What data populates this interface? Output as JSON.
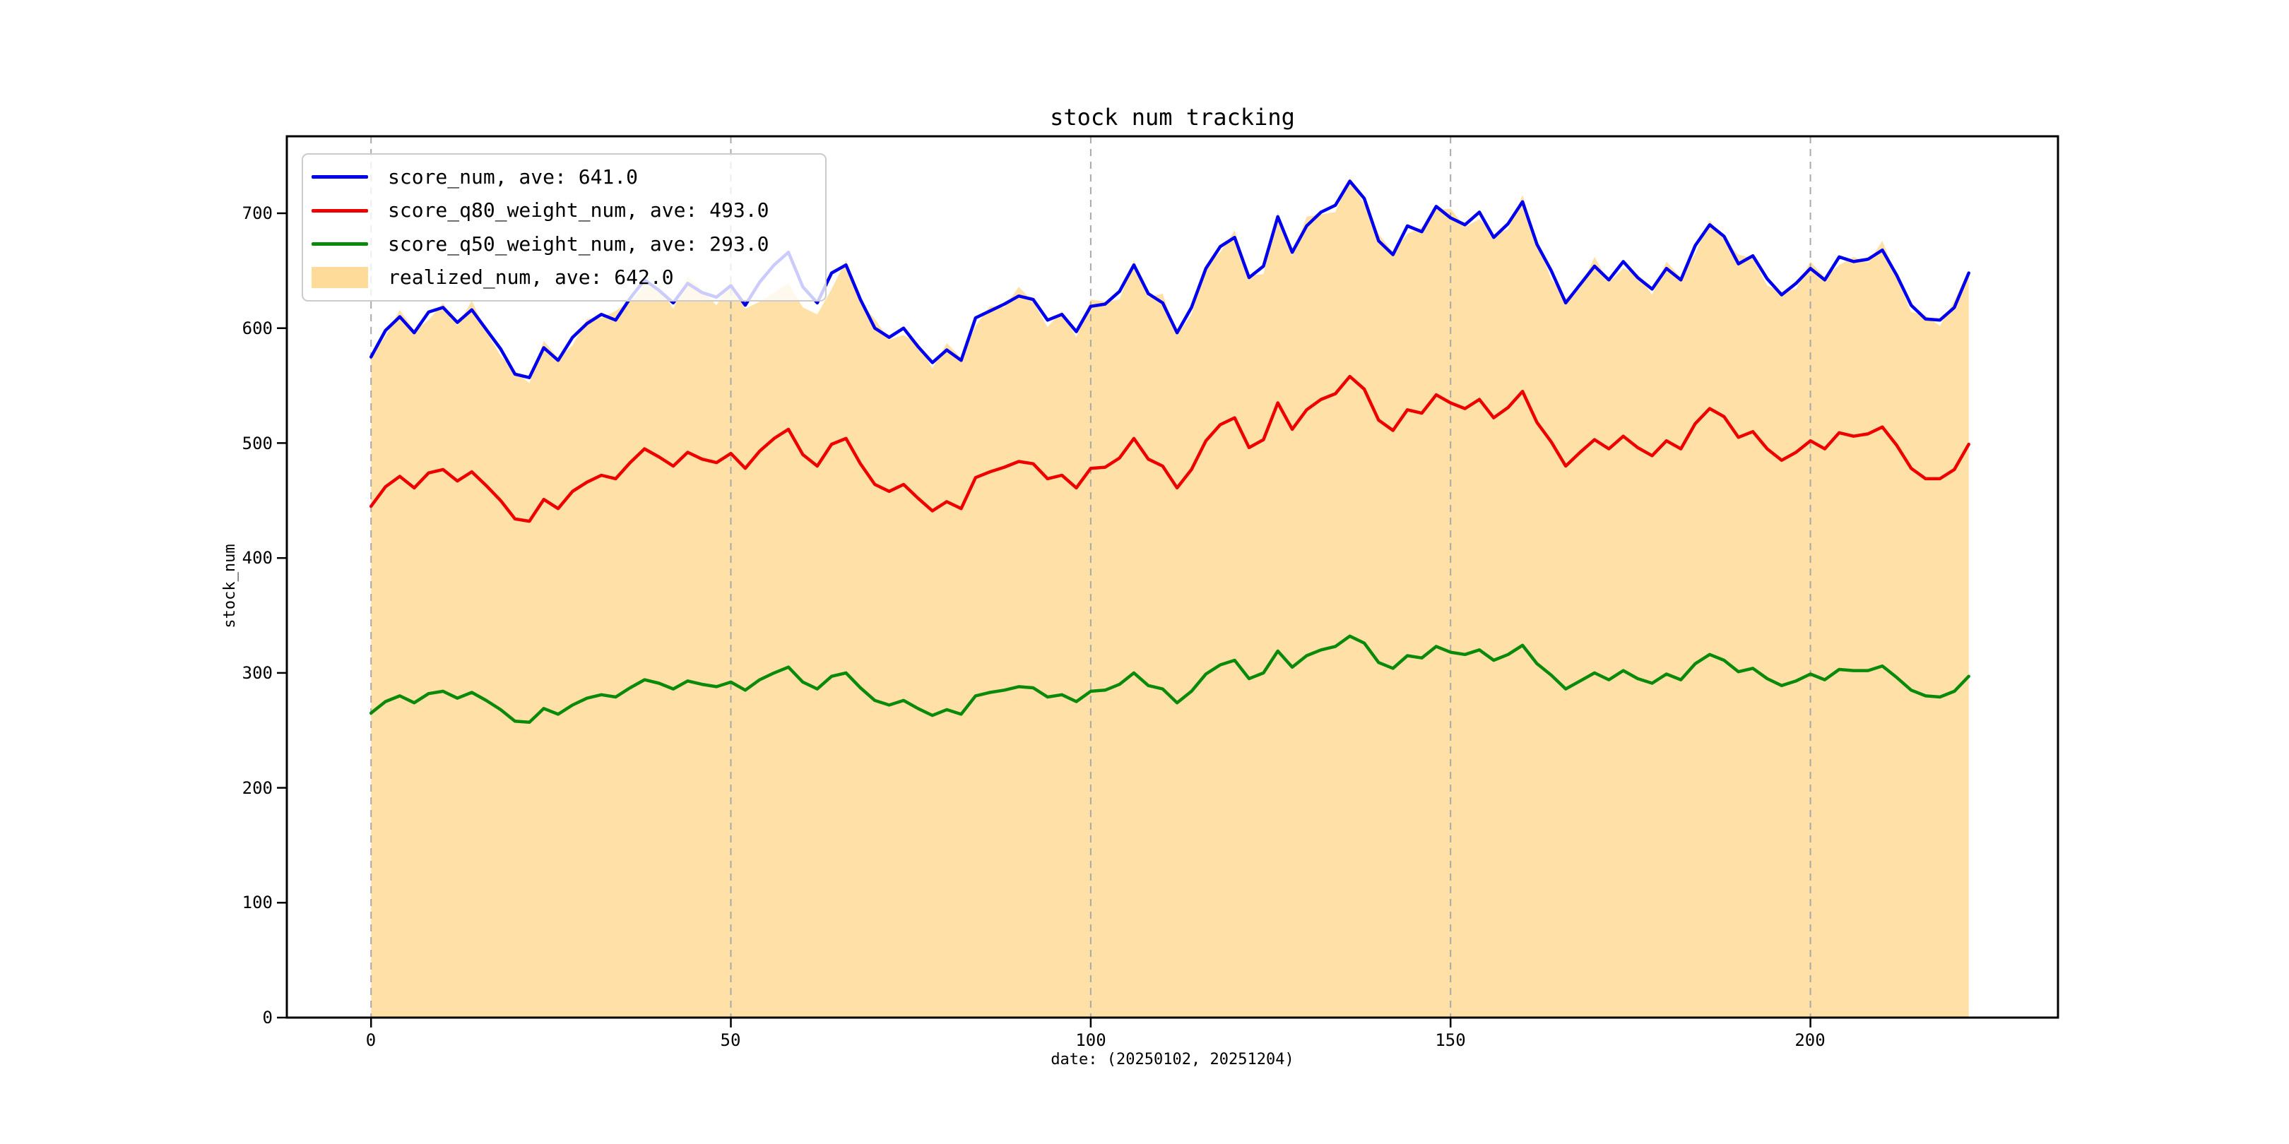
{
  "figure": {
    "title": "stock num tracking",
    "xlabel": "date: (20250102, 20251204)",
    "ylabel": "stock_num",
    "background": "#ffffff"
  },
  "chart_data": {
    "type": "line",
    "title": "stock num tracking",
    "xlabel": "date: (20250102, 20251204)",
    "ylabel": "stock_num",
    "date_range_start": "20250102",
    "date_range_end": "20251204",
    "xlim": [
      -11.7,
      234.4
    ],
    "ylim": [
      0,
      767
    ],
    "xticks": [
      0,
      50,
      100,
      150,
      200
    ],
    "yticks": [
      0,
      100,
      200,
      300,
      400,
      500,
      600,
      700
    ],
    "grid": "vertical-dashed",
    "legend_position": "upper-left",
    "x_start": 0,
    "x_step": 2,
    "colors": {
      "blue": "#0000ee",
      "red": "#ee0000",
      "green": "#0a8a0a",
      "fill_orange": "#ffa500",
      "grid": "#a9a9a9",
      "spine": "#000000",
      "legend_border": "#cbcbcb"
    },
    "series": [
      {
        "name": "score_num",
        "label": "score_num, ave: 641.0",
        "ave": 641.0,
        "color": "#0000ee",
        "kind": "line",
        "values": [
          575,
          598,
          610,
          596,
          614,
          618,
          605,
          616,
          599,
          582,
          560,
          557,
          583,
          572,
          592,
          604,
          612,
          607,
          626,
          642,
          633,
          622,
          639,
          631,
          627,
          637,
          620,
          640,
          655,
          666,
          636,
          622,
          648,
          655,
          625,
          600,
          592,
          600,
          584,
          570,
          581,
          572,
          609,
          615,
          621,
          628,
          625,
          607,
          612,
          597,
          619,
          621,
          632,
          655,
          630,
          622,
          596,
          618,
          652,
          671,
          679,
          644,
          654,
          697,
          666,
          689,
          701,
          707,
          728,
          713,
          676,
          664,
          689,
          684,
          706,
          696,
          690,
          701,
          679,
          691,
          710,
          673,
          650,
          622,
          638,
          654,
          642,
          658,
          644,
          634,
          652,
          642,
          672,
          690,
          680,
          656,
          663,
          643,
          629,
          639,
          652,
          642,
          662,
          658,
          660,
          668,
          646,
          620,
          608,
          607,
          618,
          648
        ]
      },
      {
        "name": "score_q80_weight_num",
        "label": "score_q80_weight_num, ave: 493.0",
        "ave": 493.0,
        "color": "#ee0000",
        "kind": "line",
        "values": [
          445,
          462,
          471,
          461,
          474,
          477,
          467,
          475,
          463,
          450,
          434,
          432,
          451,
          443,
          458,
          466,
          472,
          469,
          483,
          495,
          488,
          480,
          492,
          486,
          483,
          491,
          478,
          493,
          504,
          512,
          490,
          480,
          499,
          504,
          482,
          464,
          458,
          464,
          452,
          441,
          449,
          443,
          470,
          475,
          479,
          484,
          482,
          469,
          472,
          461,
          478,
          479,
          487,
          504,
          486,
          480,
          461,
          477,
          502,
          516,
          522,
          496,
          503,
          535,
          512,
          529,
          538,
          543,
          558,
          547,
          520,
          511,
          529,
          526,
          542,
          535,
          530,
          538,
          522,
          531,
          545,
          518,
          501,
          480,
          492,
          503,
          495,
          506,
          496,
          489,
          502,
          495,
          517,
          530,
          523,
          505,
          510,
          495,
          485,
          492,
          502,
          495,
          509,
          506,
          508,
          514,
          498,
          478,
          469,
          469,
          477,
          499
        ]
      },
      {
        "name": "score_q50_weight_num",
        "label": "score_q50_weight_num, ave: 293.0",
        "ave": 293.0,
        "color": "#0a8a0a",
        "kind": "line",
        "values": [
          265,
          275,
          280,
          274,
          282,
          284,
          278,
          283,
          276,
          268,
          258,
          257,
          269,
          264,
          272,
          278,
          281,
          279,
          287,
          294,
          291,
          286,
          293,
          290,
          288,
          292,
          285,
          294,
          300,
          305,
          292,
          286,
          297,
          300,
          287,
          276,
          272,
          276,
          269,
          263,
          268,
          264,
          280,
          283,
          285,
          288,
          287,
          279,
          281,
          275,
          284,
          285,
          290,
          300,
          289,
          286,
          274,
          284,
          299,
          307,
          311,
          295,
          300,
          319,
          305,
          315,
          320,
          323,
          332,
          326,
          309,
          304,
          315,
          313,
          323,
          318,
          316,
          320,
          311,
          316,
          324,
          308,
          298,
          286,
          293,
          300,
          294,
          302,
          295,
          291,
          299,
          294,
          308,
          316,
          311,
          301,
          304,
          295,
          289,
          293,
          299,
          294,
          303,
          302,
          302,
          306,
          296,
          285,
          280,
          279,
          284,
          297
        ]
      },
      {
        "name": "realized_num",
        "label": "realized_num, ave: 642.0",
        "ave": 642.0,
        "color": "#ffa500",
        "kind": "area",
        "fill_opacity": 0.35,
        "values": [
          575,
          593,
          616,
          598,
          607,
          622,
          602,
          624,
          597,
          576,
          563,
          552,
          589,
          574,
          585,
          608,
          609,
          615,
          624,
          636,
          636,
          617,
          645,
          633,
          620,
          641,
          617,
          623,
          631,
          639,
          618,
          612,
          634,
          659,
          622,
          608,
          590,
          594,
          587,
          565,
          587,
          574,
          602,
          619,
          618,
          636,
          623,
          601,
          615,
          592,
          625,
          623,
          625,
          659,
          627,
          630,
          594,
          612,
          655,
          666,
          685,
          646,
          647,
          701,
          663,
          697,
          699,
          701,
          731,
          708,
          682,
          666,
          682,
          688,
          703,
          704,
          688,
          695,
          682,
          686,
          716,
          675,
          643,
          626,
          635,
          662,
          640,
          652,
          647,
          629,
          658,
          644,
          665,
          694,
          677,
          664,
          661,
          637,
          632,
          634,
          658,
          644,
          655,
          662,
          657,
          676,
          644,
          614,
          611,
          602,
          624,
          651
        ]
      }
    ]
  },
  "legend": {
    "entries": [
      {
        "label": "score_num, ave: 641.0"
      },
      {
        "label": "score_q80_weight_num, ave: 493.0"
      },
      {
        "label": "score_q50_weight_num, ave: 293.0"
      },
      {
        "label": "realized_num, ave: 642.0"
      }
    ]
  },
  "axis_ticks": {
    "y": [
      "0",
      "100",
      "200",
      "300",
      "400",
      "500",
      "600",
      "700"
    ],
    "x": [
      "0",
      "50",
      "100",
      "150",
      "200"
    ]
  }
}
